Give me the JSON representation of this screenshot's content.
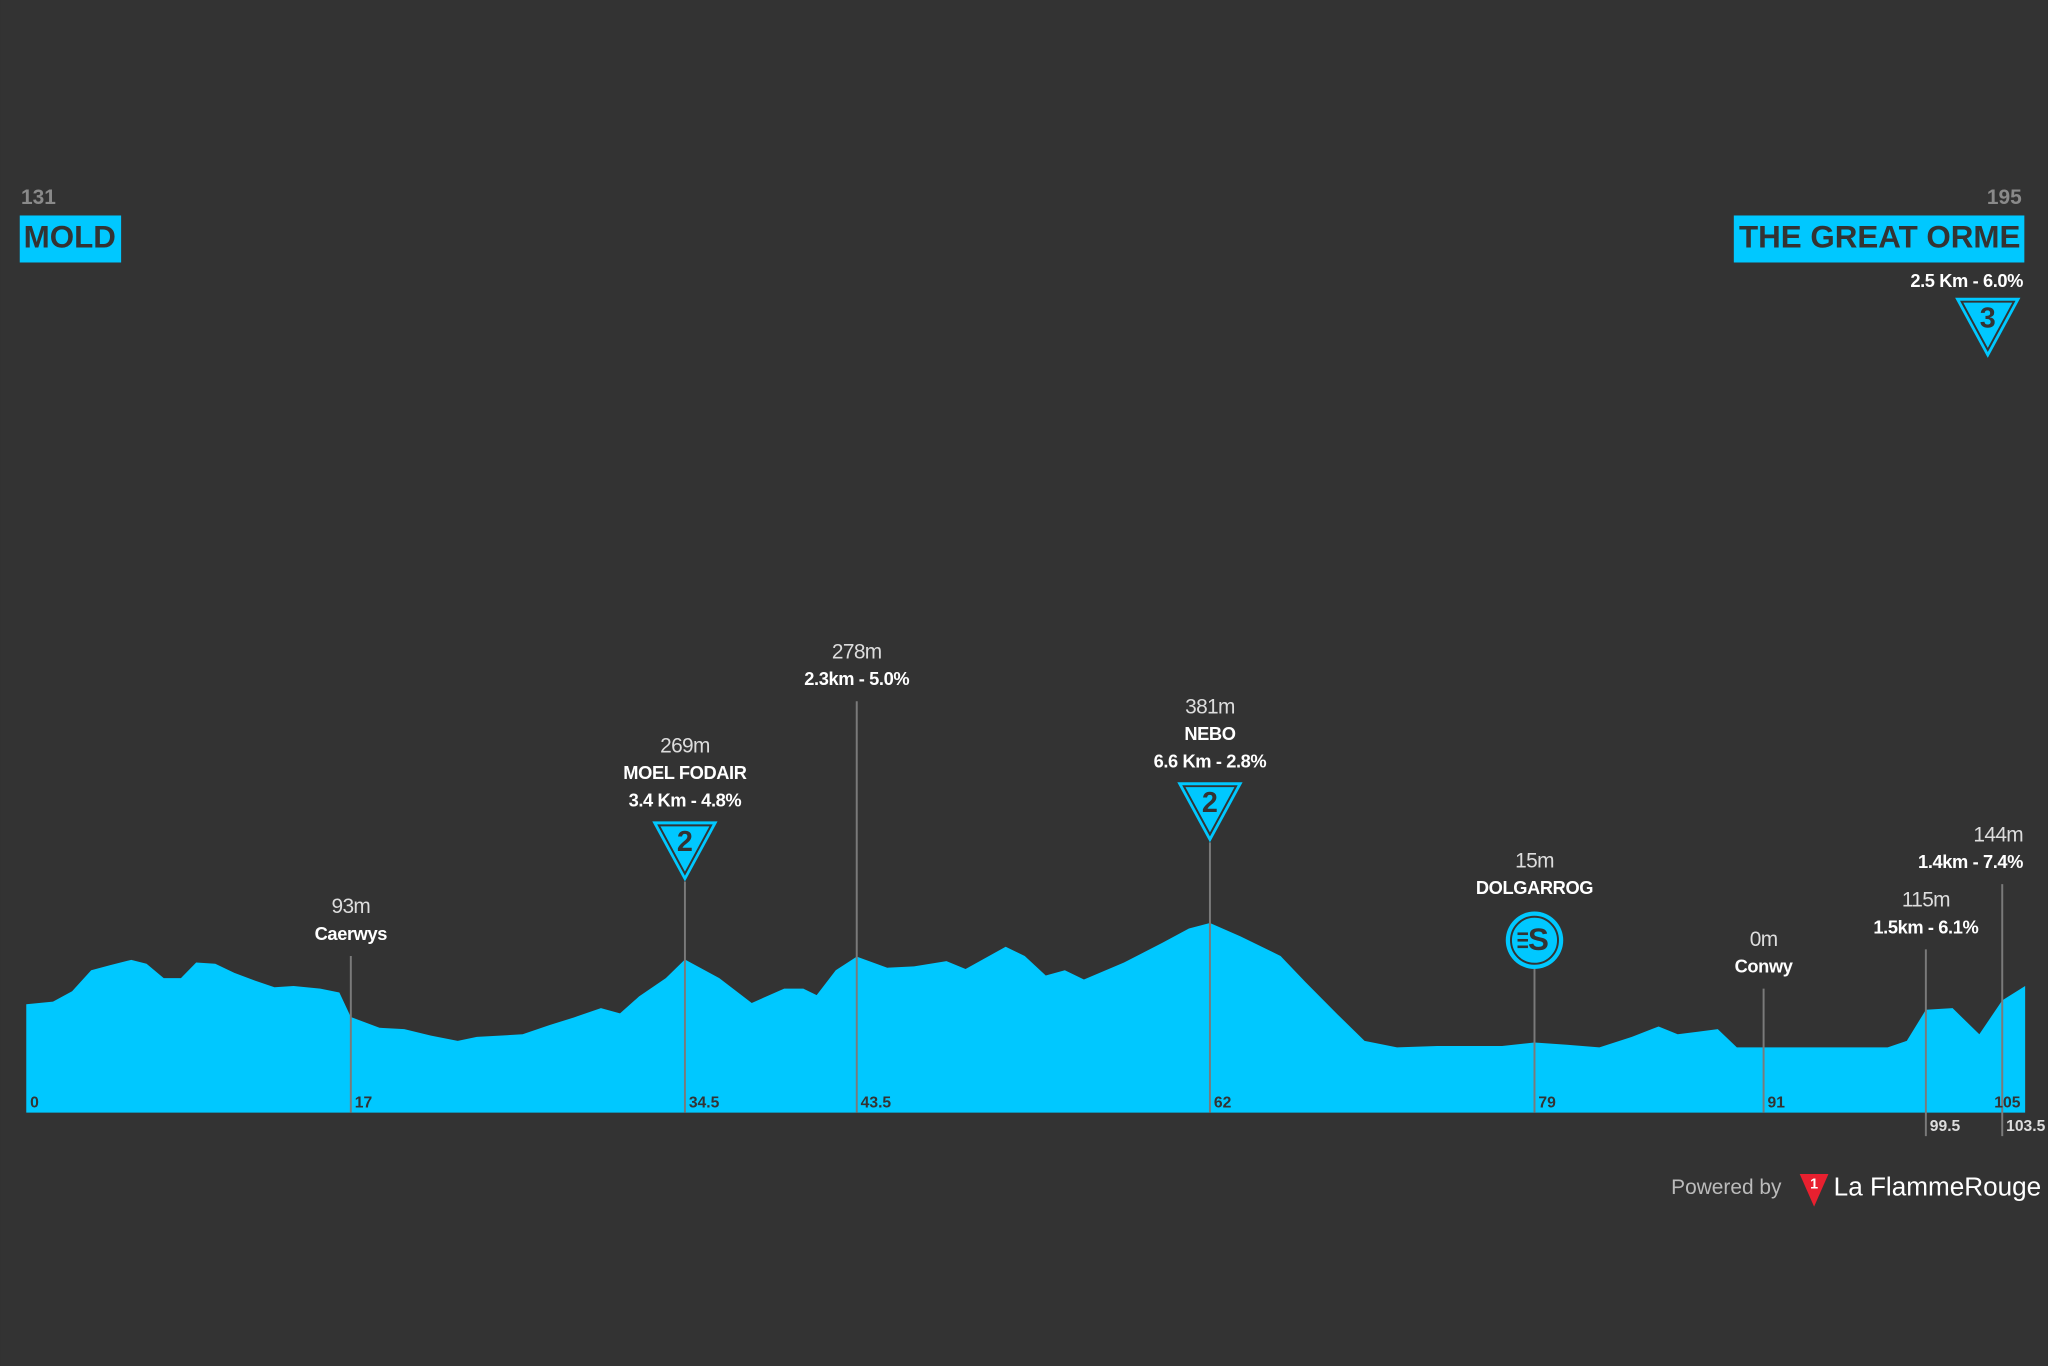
{
  "start": {
    "number": "131",
    "name": "MOLD"
  },
  "finish": {
    "number": "195",
    "name": "THE GREAT ORME",
    "climb": "2.5 Km - 6.0%",
    "category": "3"
  },
  "chart_data": {
    "type": "area",
    "color": "#00c8ff",
    "x": [
      0,
      1.4,
      2.4,
      3.4,
      4.4,
      5.5,
      6.3,
      7.2,
      8.1,
      8.9,
      9.9,
      10.9,
      12,
      13,
      14,
      15.4,
      16.4,
      17,
      18.5,
      19.8,
      21.2,
      22.6,
      23.6,
      26,
      27.4,
      28.7,
      30.1,
      31.1,
      32.1,
      33.5,
      34.5,
      36.3,
      38,
      39.7,
      40.7,
      41.4,
      42.4,
      43.5,
      45.1,
      46.5,
      48.2,
      49.2,
      51.3,
      52.3,
      53.4,
      54.4,
      55.4,
      57.5,
      59.5,
      60.9,
      62,
      63.6,
      65.7,
      67,
      68.7,
      70.1,
      71.8,
      73.9,
      77.3,
      79,
      80.7,
      82.4,
      84.1,
      85.5,
      86.5,
      87.6,
      88.6,
      89.6,
      91,
      94.4,
      97.5,
      98.5,
      99.5,
      100.9,
      102.3,
      103.5,
      104.7
    ],
    "values": [
      132,
      140,
      172,
      236,
      252,
      268,
      256,
      212,
      212,
      260,
      256,
      228,
      204,
      184,
      188,
      180,
      168,
      93,
      60,
      56,
      36,
      20,
      32,
      40,
      68,
      92,
      120,
      104,
      156,
      212,
      269,
      212,
      136,
      180,
      180,
      160,
      236,
      278,
      244,
      248,
      264,
      240,
      308,
      280,
      220,
      236,
      208,
      260,
      320,
      364,
      381,
      340,
      280,
      200,
      100,
      20,
      0,
      4,
      4,
      15,
      8,
      0,
      32,
      64,
      40,
      48,
      56,
      0,
      0,
      0,
      0,
      20,
      115,
      120,
      40,
      144,
      188
    ],
    "xlim": [
      0,
      105
    ],
    "ylim": [
      -200,
      1400
    ],
    "xticks": [
      0,
      17,
      34.5,
      43.5,
      62,
      79,
      91,
      99.5,
      103.5,
      105
    ]
  },
  "markers": [
    {
      "elevation": "93m",
      "name": "Caerwys"
    },
    {
      "elevation": "269m",
      "name": "MOEL FODAIR",
      "climb": "3.4 Km - 4.8%",
      "category": "2"
    },
    {
      "elevation": "278m",
      "climb": "2.3km - 5.0%"
    },
    {
      "elevation": "381m",
      "name": "NEBO",
      "climb": "6.6 Km - 2.8%",
      "category": "2"
    },
    {
      "elevation": "15m",
      "name": "DOLGARROG",
      "sprint": "S"
    },
    {
      "elevation": "0m",
      "name": "Conwy"
    },
    {
      "elevation": "115m",
      "climb": "1.5km - 6.1%"
    },
    {
      "elevation": "144m",
      "climb": "1.4km - 7.4%"
    }
  ],
  "footer": {
    "powered_by": "Powered by",
    "logo": "1",
    "brand": "La FlammeRouge"
  }
}
